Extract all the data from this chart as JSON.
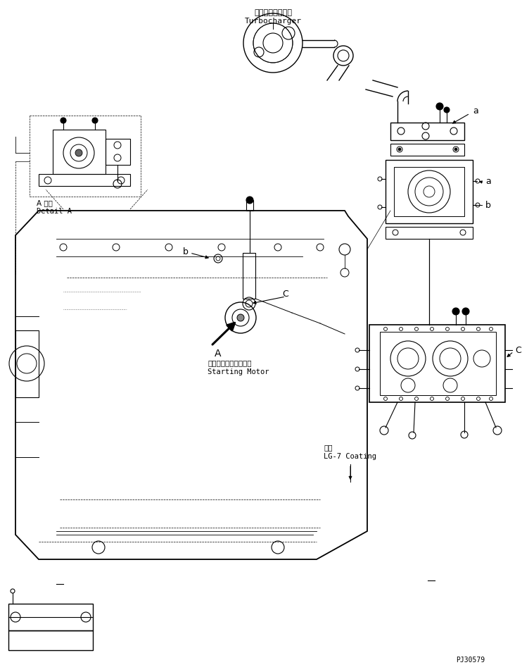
{
  "title": "",
  "bg_color": "#ffffff",
  "line_color": "#000000",
  "fig_width": 7.42,
  "fig_height": 9.45,
  "dpi": 100,
  "labels": {
    "turbocharger_jp": "ターボチャージャ",
    "turbocharger_en": "Turbocharger",
    "detail_a_jp": "A 詳細",
    "detail_a_en": "Detail A",
    "starting_motor_jp": "スターティングモータ",
    "starting_motor_en": "Starting Motor",
    "coating_jp": "塗布",
    "coating_en": "LG-7 Coating",
    "part_id": "PJ30579"
  }
}
